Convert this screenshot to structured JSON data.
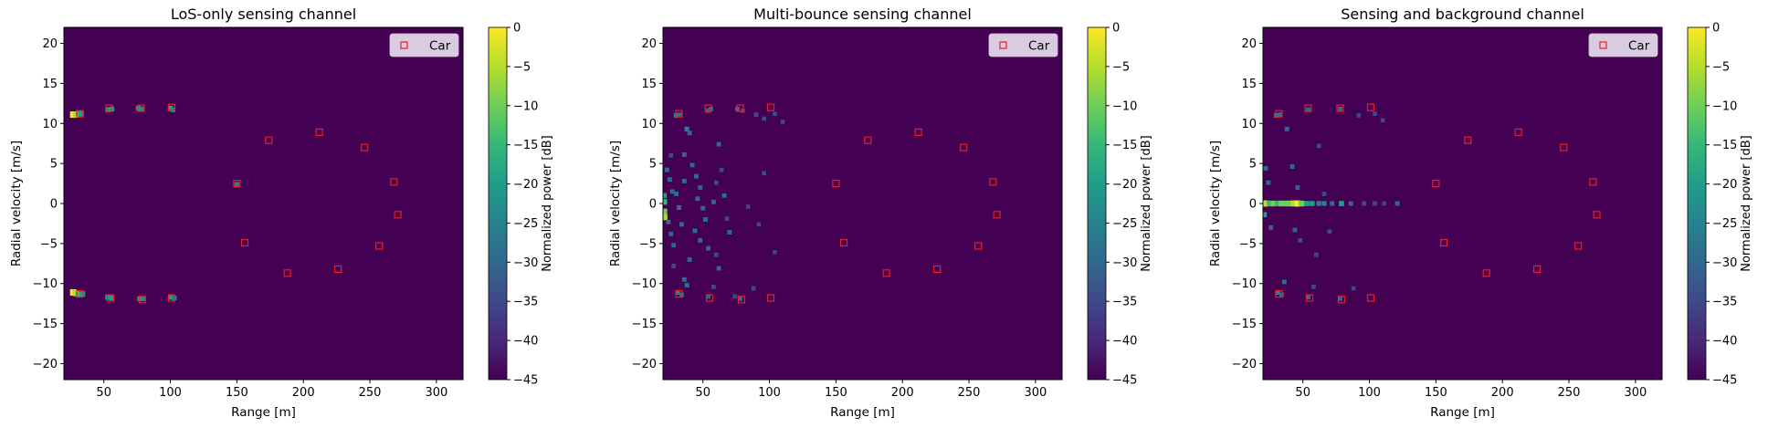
{
  "colors": {
    "background": "#440154",
    "car_marker": "#e8202a",
    "legend_bg": "#d9cce0",
    "colormap": [
      "#440154",
      "#482878",
      "#3e4989",
      "#31688e",
      "#26828e",
      "#1f9e89",
      "#35b779",
      "#6ece58",
      "#b5de2b",
      "#fde725"
    ]
  },
  "chart_data": [
    {
      "type": "heatmap",
      "title": "LoS-only sensing channel",
      "xlabel": "Range [m]",
      "ylabel": "Radial velocity [m/s]",
      "xlim": [
        20,
        320
      ],
      "ylim": [
        -22,
        22
      ],
      "xticks": [
        50,
        100,
        150,
        200,
        250,
        300
      ],
      "yticks": [
        -20,
        -15,
        -10,
        -5,
        0,
        5,
        10,
        15,
        20
      ],
      "colorbar": {
        "label": "Normalized power [dB]",
        "range": [
          -45,
          0
        ],
        "ticks": [
          0,
          -5,
          -10,
          -15,
          -20,
          -25,
          -30,
          -35,
          -40,
          -45
        ]
      },
      "legend": {
        "entries": [
          "Car"
        ],
        "placement": "upper right"
      },
      "series": [
        {
          "name": "Car",
          "marker": "square",
          "points": [
            [
              32,
              11.2
            ],
            [
              54,
              11.9
            ],
            [
              78,
              11.9
            ],
            [
              101,
              12.0
            ],
            [
              150,
              2.5
            ],
            [
              156,
              -4.9
            ],
            [
              174,
              7.9
            ],
            [
              188,
              -8.7
            ],
            [
              212,
              8.9
            ],
            [
              226,
              -8.2
            ],
            [
              246,
              7.0
            ],
            [
              257,
              -5.3
            ],
            [
              268,
              2.7
            ],
            [
              271,
              -1.4
            ],
            [
              32,
              -11.3
            ],
            [
              55,
              -11.8
            ],
            [
              79,
              -12.0
            ],
            [
              101,
              -11.8
            ]
          ]
        }
      ],
      "hotspots": [
        [
          27,
          11.1,
          1.0
        ],
        [
          29,
          11.1,
          0.9
        ],
        [
          31,
          11.3,
          0.7
        ],
        [
          33,
          11.2,
          0.6
        ],
        [
          53,
          11.7,
          0.55
        ],
        [
          56,
          11.8,
          0.5
        ],
        [
          76,
          11.9,
          0.5
        ],
        [
          79,
          11.8,
          0.45
        ],
        [
          100,
          11.9,
          0.5
        ],
        [
          102,
          11.7,
          0.4
        ],
        [
          150,
          2.4,
          0.45
        ],
        [
          27,
          -11.1,
          1.0
        ],
        [
          29,
          -11.2,
          0.9
        ],
        [
          31,
          -11.4,
          0.7
        ],
        [
          34,
          -11.3,
          0.6
        ],
        [
          53,
          -11.7,
          0.55
        ],
        [
          56,
          -11.8,
          0.5
        ],
        [
          77,
          -11.9,
          0.5
        ],
        [
          80,
          -11.9,
          0.45
        ],
        [
          100,
          -11.7,
          0.5
        ],
        [
          103,
          -11.8,
          0.4
        ]
      ]
    },
    {
      "type": "heatmap",
      "title": "Multi-bounce sensing channel",
      "xlabel": "Range [m]",
      "ylabel": "Radial velocity [m/s]",
      "xlim": [
        20,
        320
      ],
      "ylim": [
        -22,
        22
      ],
      "xticks": [
        50,
        100,
        150,
        200,
        250,
        300
      ],
      "yticks": [
        -20,
        -15,
        -10,
        -5,
        0,
        5,
        10,
        15,
        20
      ],
      "colorbar": {
        "label": "Normalized power [dB]",
        "range": [
          -45,
          0
        ],
        "ticks": [
          0,
          -5,
          -10,
          -15,
          -20,
          -25,
          -30,
          -35,
          -40,
          -45
        ]
      },
      "legend": {
        "entries": [
          "Car"
        ],
        "placement": "upper right"
      },
      "series": [
        {
          "name": "Car",
          "marker": "square",
          "points": [
            [
              32,
              11.2
            ],
            [
              54,
              11.9
            ],
            [
              78,
              11.9
            ],
            [
              101,
              12.0
            ],
            [
              150,
              2.5
            ],
            [
              156,
              -4.9
            ],
            [
              174,
              7.9
            ],
            [
              188,
              -8.7
            ],
            [
              212,
              8.9
            ],
            [
              226,
              -8.2
            ],
            [
              246,
              7.0
            ],
            [
              257,
              -5.3
            ],
            [
              268,
              2.7
            ],
            [
              271,
              -1.4
            ],
            [
              32,
              -11.3
            ],
            [
              55,
              -11.8
            ],
            [
              79,
              -12.0
            ],
            [
              101,
              -11.8
            ]
          ]
        }
      ],
      "hotspots": [
        [
          21,
          0.2,
          0.7
        ],
        [
          21,
          -1.0,
          0.75
        ],
        [
          21,
          -1.7,
          0.9
        ],
        [
          21,
          1.0,
          0.5
        ],
        [
          23,
          4.2,
          0.35
        ],
        [
          25,
          3.0,
          0.35
        ],
        [
          27,
          1.5,
          0.3
        ],
        [
          24,
          -2.3,
          0.35
        ],
        [
          26,
          -3.8,
          0.3
        ],
        [
          28,
          -5.2,
          0.3
        ],
        [
          30,
          11.0,
          0.45
        ],
        [
          33,
          11.1,
          0.35
        ],
        [
          38,
          9.3,
          0.4
        ],
        [
          40,
          8.8,
          0.35
        ],
        [
          36,
          6.1,
          0.3
        ],
        [
          42,
          4.8,
          0.3
        ],
        [
          45,
          3.4,
          0.35
        ],
        [
          48,
          2.0,
          0.3
        ],
        [
          46,
          0.6,
          0.35
        ],
        [
          50,
          -0.6,
          0.3
        ],
        [
          52,
          -2.0,
          0.35
        ],
        [
          44,
          -3.4,
          0.3
        ],
        [
          48,
          -4.6,
          0.3
        ],
        [
          54,
          -5.6,
          0.3
        ],
        [
          40,
          -7.0,
          0.3
        ],
        [
          36,
          -9.5,
          0.35
        ],
        [
          38,
          -10.2,
          0.35
        ],
        [
          31,
          -11.1,
          0.4
        ],
        [
          34,
          -11.4,
          0.35
        ],
        [
          54,
          11.6,
          0.35
        ],
        [
          56,
          11.8,
          0.3
        ],
        [
          62,
          7.4,
          0.3
        ],
        [
          64,
          4.2,
          0.25
        ],
        [
          66,
          1.0,
          0.3
        ],
        [
          68,
          -1.9,
          0.25
        ],
        [
          70,
          -3.6,
          0.3
        ],
        [
          60,
          -6.4,
          0.25
        ],
        [
          62,
          -8.1,
          0.3
        ],
        [
          58,
          -10.4,
          0.25
        ],
        [
          76,
          11.8,
          0.3
        ],
        [
          80,
          11.6,
          0.25
        ],
        [
          78,
          -11.9,
          0.3
        ],
        [
          74,
          -11.6,
          0.25
        ],
        [
          54,
          -11.6,
          0.3
        ],
        [
          88,
          -10.6,
          0.25
        ],
        [
          90,
          11.1,
          0.25
        ],
        [
          96,
          10.6,
          0.2
        ],
        [
          104,
          11.2,
          0.2
        ],
        [
          110,
          10.2,
          0.2
        ],
        [
          30,
          1.2,
          0.3
        ],
        [
          32,
          -0.5,
          0.35
        ],
        [
          34,
          -2.6,
          0.3
        ],
        [
          36,
          2.8,
          0.3
        ],
        [
          26,
          6.0,
          0.25
        ],
        [
          28,
          -7.8,
          0.25
        ],
        [
          58,
          0.2,
          0.3
        ],
        [
          60,
          2.6,
          0.25
        ],
        [
          84,
          -0.4,
          0.2
        ],
        [
          92,
          -2.6,
          0.2
        ],
        [
          96,
          3.8,
          0.2
        ],
        [
          104,
          -6.1,
          0.2
        ]
      ]
    },
    {
      "type": "heatmap",
      "title": "Sensing and background channel",
      "xlabel": "Range [m]",
      "ylabel": "Radial velocity [m/s]",
      "xlim": [
        20,
        320
      ],
      "ylim": [
        -22,
        22
      ],
      "xticks": [
        50,
        100,
        150,
        200,
        250,
        300
      ],
      "yticks": [
        -20,
        -15,
        -10,
        -5,
        0,
        5,
        10,
        15,
        20
      ],
      "colorbar": {
        "label": "Normalized power [dB]",
        "range": [
          -45,
          0
        ],
        "ticks": [
          0,
          -5,
          -10,
          -15,
          -20,
          -25,
          -30,
          -35,
          -40,
          -45
        ]
      },
      "legend": {
        "entries": [
          "Car"
        ],
        "placement": "upper right"
      },
      "series": [
        {
          "name": "Car",
          "marker": "square",
          "points": [
            [
              32,
              11.2
            ],
            [
              54,
              11.9
            ],
            [
              78,
              11.9
            ],
            [
              101,
              12.0
            ],
            [
              150,
              2.5
            ],
            [
              156,
              -4.9
            ],
            [
              174,
              7.9
            ],
            [
              188,
              -8.7
            ],
            [
              212,
              8.9
            ],
            [
              226,
              -8.2
            ],
            [
              246,
              7.0
            ],
            [
              257,
              -5.3
            ],
            [
              268,
              2.7
            ],
            [
              271,
              -1.4
            ],
            [
              32,
              -11.3
            ],
            [
              55,
              -11.8
            ],
            [
              79,
              -12.0
            ],
            [
              101,
              -11.8
            ]
          ]
        }
      ],
      "hotspots": [
        [
          21,
          0.0,
          0.95
        ],
        [
          23,
          0.0,
          0.85
        ],
        [
          25,
          0.0,
          0.7
        ],
        [
          28,
          0.0,
          0.75
        ],
        [
          31,
          0.0,
          0.7
        ],
        [
          34,
          0.0,
          0.8
        ],
        [
          37,
          0.0,
          0.75
        ],
        [
          40,
          0.0,
          0.8
        ],
        [
          43,
          0.0,
          0.85
        ],
        [
          46,
          0.0,
          0.95
        ],
        [
          49,
          0.0,
          0.75
        ],
        [
          53,
          0.0,
          0.55
        ],
        [
          57,
          0.0,
          0.5
        ],
        [
          62,
          0.0,
          0.45
        ],
        [
          66,
          0.0,
          0.4
        ],
        [
          72,
          0.0,
          0.35
        ],
        [
          79,
          0.0,
          0.55
        ],
        [
          86,
          0.0,
          0.3
        ],
        [
          96,
          0.0,
          0.25
        ],
        [
          104,
          0.0,
          0.25
        ],
        [
          111,
          0.0,
          0.2
        ],
        [
          121,
          0.0,
          0.35
        ],
        [
          21,
          -1.4,
          0.5
        ],
        [
          22,
          4.4,
          0.35
        ],
        [
          24,
          2.6,
          0.3
        ],
        [
          26,
          -3.0,
          0.3
        ],
        [
          30,
          11.0,
          0.45
        ],
        [
          33,
          11.1,
          0.35
        ],
        [
          38,
          9.3,
          0.35
        ],
        [
          42,
          4.6,
          0.3
        ],
        [
          46,
          2.0,
          0.3
        ],
        [
          44,
          -3.3,
          0.3
        ],
        [
          48,
          -4.6,
          0.25
        ],
        [
          36,
          -9.8,
          0.35
        ],
        [
          31,
          -11.1,
          0.4
        ],
        [
          34,
          -11.4,
          0.35
        ],
        [
          54,
          11.7,
          0.35
        ],
        [
          62,
          7.2,
          0.25
        ],
        [
          66,
          1.2,
          0.25
        ],
        [
          70,
          -3.5,
          0.25
        ],
        [
          60,
          -6.4,
          0.25
        ],
        [
          58,
          -10.4,
          0.25
        ],
        [
          54,
          -11.7,
          0.3
        ],
        [
          78,
          11.8,
          0.3
        ],
        [
          78,
          -11.9,
          0.3
        ],
        [
          88,
          -10.6,
          0.2
        ],
        [
          92,
          11.0,
          0.2
        ],
        [
          104,
          11.2,
          0.2
        ],
        [
          110,
          10.4,
          0.2
        ]
      ]
    }
  ]
}
